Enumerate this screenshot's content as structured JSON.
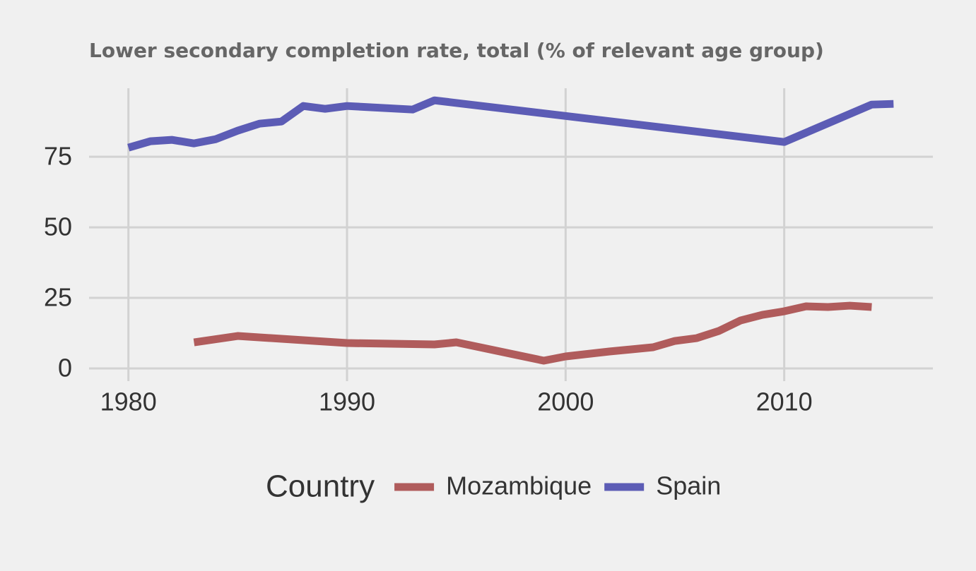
{
  "chart_data": {
    "type": "line",
    "title": "Lower secondary completion rate, total (% of relevant age group)",
    "legend_title": "Country",
    "series": [
      {
        "name": "Mozambique",
        "color": "#b05c5c",
        "x": [
          1983,
          1985,
          1990,
          1994,
          1995,
          1999,
          2000,
          2002,
          2004,
          2005,
          2006,
          2007,
          2008,
          2009,
          2010,
          2011,
          2012,
          2013,
          2014
        ],
        "values": [
          9.25,
          11.5,
          9,
          8.5,
          9.25,
          2.75,
          4.25,
          6,
          7.5,
          9.75,
          10.75,
          13.25,
          17,
          19,
          20.25,
          22,
          21.75,
          22.25,
          21.75
        ]
      },
      {
        "name": "Spain",
        "color": "#5c5cb5",
        "x": [
          1980,
          1981,
          1982,
          1983,
          1984,
          1985,
          1986,
          1987,
          1988,
          1989,
          1990,
          1993,
          1994,
          2010,
          2014,
          2015
        ],
        "values": [
          78.25,
          80.5,
          81,
          79.75,
          81.25,
          84.25,
          86.75,
          87.5,
          93,
          92,
          93,
          91.75,
          95,
          80.25,
          93.5,
          93.75
        ]
      }
    ],
    "xlim": [
      1978.2,
      2016.8
    ],
    "xticks": [
      1980,
      1990,
      2000,
      2010
    ],
    "ylim": [
      -4.5,
      99.3
    ],
    "yticks": [
      0,
      25,
      50,
      75
    ],
    "grid": true
  }
}
